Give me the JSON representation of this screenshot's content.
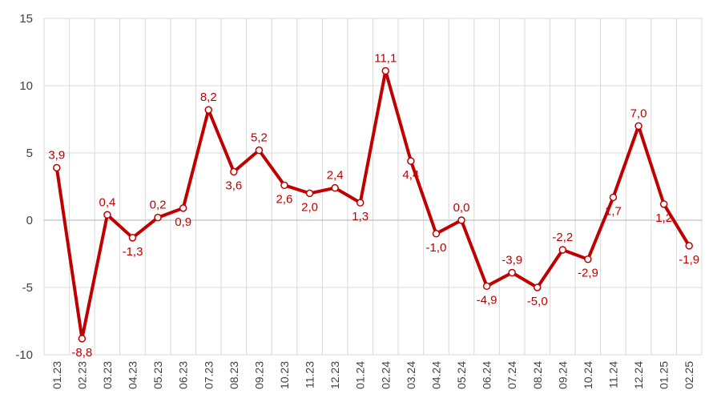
{
  "chart_data": {
    "type": "line",
    "title": "",
    "xlabel": "",
    "ylabel": "",
    "ylim": [
      -10,
      15
    ],
    "yticks": [
      15,
      10,
      5,
      0,
      -5,
      -10
    ],
    "grid": true,
    "legend": "none",
    "categories": [
      "01.23",
      "02.23",
      "03.23",
      "04.23",
      "05.23",
      "06.23",
      "07.23",
      "08.23",
      "09.23",
      "10.23",
      "11.23",
      "12.23",
      "01.24",
      "02.24",
      "03.24",
      "04.24",
      "05.24",
      "06.24",
      "07.24",
      "08.24",
      "09.24",
      "10.24",
      "11.24",
      "12.24",
      "01.25",
      "02.25"
    ],
    "series": [
      {
        "values": [
          3.9,
          -8.8,
          0.4,
          -1.3,
          0.2,
          0.9,
          8.2,
          3.6,
          5.2,
          2.6,
          2.0,
          2.4,
          1.3,
          11.1,
          4.4,
          -1.0,
          0.0,
          -4.9,
          -3.9,
          -5.0,
          -2.2,
          -2.9,
          1.7,
          7.0,
          1.2,
          -1.9
        ],
        "labels": [
          "3,9",
          "-8,8",
          "0,4",
          "-1,3",
          "0,2",
          "0,9",
          "8,2",
          "3,6",
          "5,2",
          "2,6",
          "2,0",
          "2,4",
          "1,3",
          "11,1",
          "4,4",
          "-1,0",
          "0,0",
          "-4,9",
          "-3,9",
          "-5,0",
          "-2,2",
          "-2,9",
          "1,7",
          "7,0",
          "1,2",
          "-1,9"
        ],
        "color": "#c00000"
      }
    ]
  }
}
